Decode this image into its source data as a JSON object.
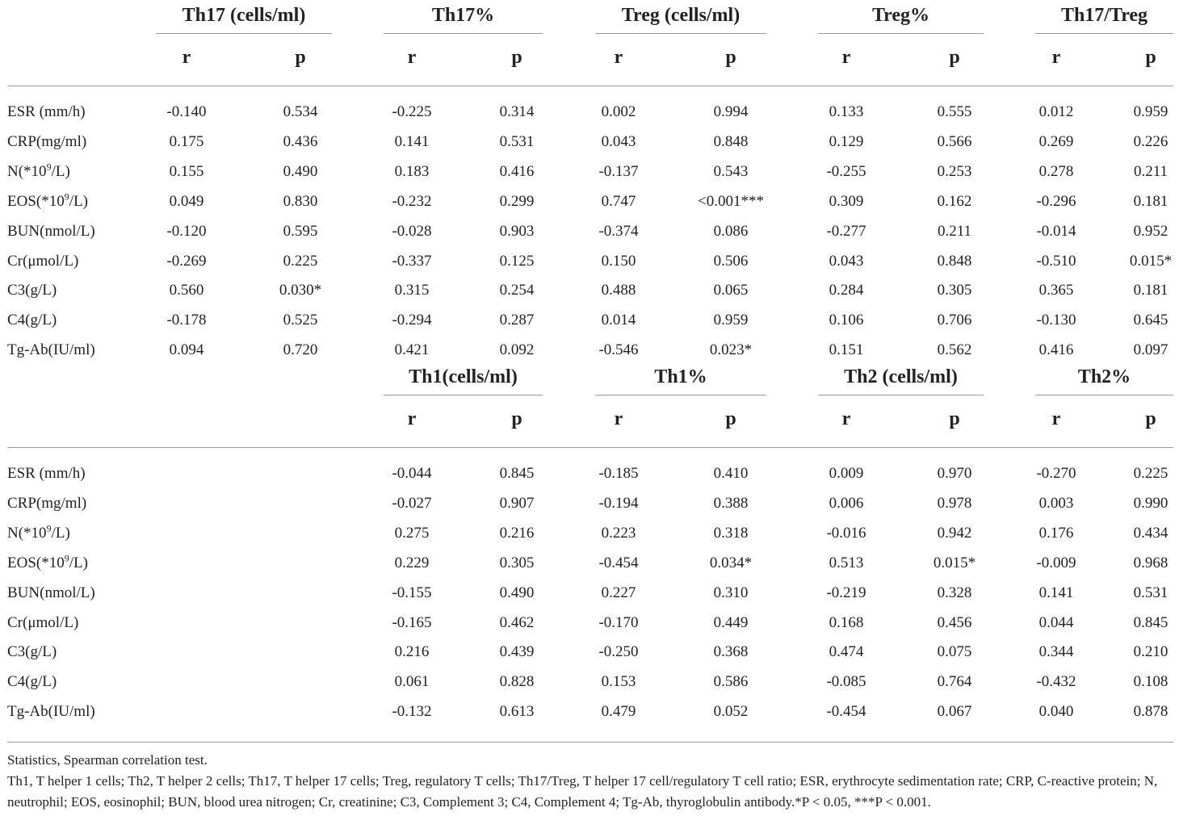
{
  "table1": {
    "groups": [
      "Th17 (cells/ml)",
      "Th17%",
      "Treg (cells/ml)",
      "Treg%",
      "Th17/Treg"
    ],
    "sub": [
      "r",
      "p"
    ],
    "rows": [
      {
        "label": "ESR (mm/h)",
        "vals": [
          "-0.140",
          "0.534",
          "-0.225",
          "0.314",
          "0.002",
          "0.994",
          "0.133",
          "0.555",
          "0.012",
          "0.959"
        ]
      },
      {
        "label": "CRP(mg/ml)",
        "vals": [
          "0.175",
          "0.436",
          "0.141",
          "0.531",
          "0.043",
          "0.848",
          "0.129",
          "0.566",
          "0.269",
          "0.226"
        ]
      },
      {
        "label": "N(*10",
        "sup": "9",
        "suffix": "/L)",
        "vals": [
          "0.155",
          "0.490",
          "0.183",
          "0.416",
          "-0.137",
          "0.543",
          "-0.255",
          "0.253",
          "0.278",
          "0.211"
        ]
      },
      {
        "label": "EOS(*10",
        "sup": "9",
        "suffix": "/L)",
        "vals": [
          "0.049",
          "0.830",
          "-0.232",
          "0.299",
          "0.747",
          "<0.001***",
          "0.309",
          "0.162",
          "-0.296",
          "0.181"
        ]
      },
      {
        "label": "BUN(nmol/L)",
        "vals": [
          "-0.120",
          "0.595",
          "-0.028",
          "0.903",
          "-0.374",
          "0.086",
          "-0.277",
          "0.211",
          "-0.014",
          "0.952"
        ]
      },
      {
        "label": "Cr(μmol/L)",
        "vals": [
          "-0.269",
          "0.225",
          "-0.337",
          "0.125",
          "0.150",
          "0.506",
          "0.043",
          "0.848",
          "-0.510",
          "0.015*"
        ]
      },
      {
        "label": "C3(g/L)",
        "vals": [
          "0.560",
          "0.030*",
          "0.315",
          "0.254",
          "0.488",
          "0.065",
          "0.284",
          "0.305",
          "0.365",
          "0.181"
        ]
      },
      {
        "label": "C4(g/L)",
        "vals": [
          "-0.178",
          "0.525",
          "-0.294",
          "0.287",
          "0.014",
          "0.959",
          "0.106",
          "0.706",
          "-0.130",
          "0.645"
        ]
      },
      {
        "label": "Tg-Ab(IU/ml)",
        "vals": [
          "0.094",
          "0.720",
          "0.421",
          "0.092",
          "-0.546",
          "0.023*",
          "0.151",
          "0.562",
          "0.416",
          "0.097"
        ]
      }
    ]
  },
  "table2": {
    "groups": [
      "Th1(cells/ml)",
      "Th1%",
      "Th2 (cells/ml)",
      "Th2%"
    ],
    "sub": [
      "r",
      "p"
    ],
    "rows": [
      {
        "label": "ESR (mm/h)",
        "vals": [
          "-0.044",
          "0.845",
          "-0.185",
          "0.410",
          "0.009",
          "0.970",
          "-0.270",
          "0.225"
        ]
      },
      {
        "label": "CRP(mg/ml)",
        "vals": [
          "-0.027",
          "0.907",
          "-0.194",
          "0.388",
          "0.006",
          "0.978",
          "0.003",
          "0.990"
        ]
      },
      {
        "label": "N(*10",
        "sup": "9",
        "suffix": "/L)",
        "vals": [
          "0.275",
          "0.216",
          "0.223",
          "0.318",
          "-0.016",
          "0.942",
          "0.176",
          "0.434"
        ]
      },
      {
        "label": "EOS(*10",
        "sup": "9",
        "suffix": "/L)",
        "vals": [
          "0.229",
          "0.305",
          "-0.454",
          "0.034*",
          "0.513",
          "0.015*",
          "-0.009",
          "0.968"
        ]
      },
      {
        "label": "BUN(nmol/L)",
        "vals": [
          "-0.155",
          "0.490",
          "0.227",
          "0.310",
          "-0.219",
          "0.328",
          "0.141",
          "0.531"
        ]
      },
      {
        "label": "Cr(μmol/L)",
        "vals": [
          "-0.165",
          "0.462",
          "-0.170",
          "0.449",
          "0.168",
          "0.456",
          "0.044",
          "0.845"
        ]
      },
      {
        "label": "C3(g/L)",
        "vals": [
          "0.216",
          "0.439",
          "-0.250",
          "0.368",
          "0.474",
          "0.075",
          "0.344",
          "0.210"
        ]
      },
      {
        "label": "C4(g/L)",
        "vals": [
          "0.061",
          "0.828",
          "0.153",
          "0.586",
          "-0.085",
          "0.764",
          "-0.432",
          "0.108"
        ]
      },
      {
        "label": "Tg-Ab(IU/ml)",
        "vals": [
          "-0.132",
          "0.613",
          "0.479",
          "0.052",
          "-0.454",
          "0.067",
          "0.040",
          "0.878"
        ]
      }
    ]
  },
  "footnote": {
    "line1": "Statistics, Spearman correlation test.",
    "line2": "Th1, T helper 1 cells; Th2, T helper 2 cells; Th17, T helper 17 cells; Treg, regulatory T cells; Th17/Treg, T helper 17 cell/regulatory T cell ratio; ESR, erythrocyte sedimentation rate; CRP, C-reactive protein; N, neutrophil; EOS, eosinophil; BUN, blood urea nitrogen; Cr, creatinine; C3, Complement 3; C4, Complement 4; Tg-Ab, thyroglobulin antibody.*P < 0.05, ***P < 0.001."
  }
}
